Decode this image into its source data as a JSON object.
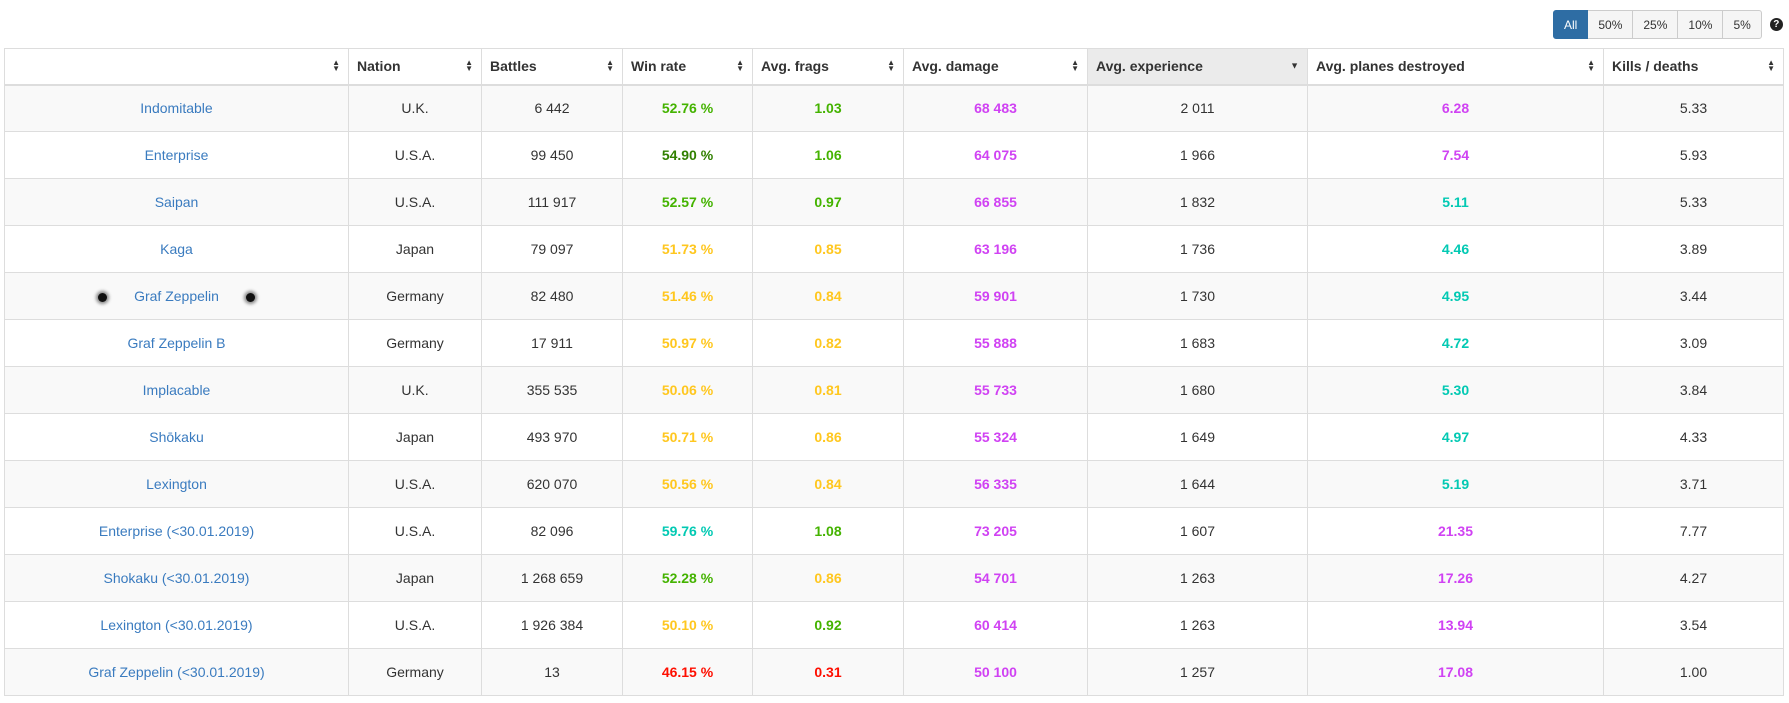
{
  "filters": {
    "buttons": [
      "All",
      "50%",
      "25%",
      "10%",
      "5%"
    ],
    "active": "All",
    "help_symbol": "?"
  },
  "table": {
    "headers": [
      "",
      "Nation",
      "Battles",
      "Win rate",
      "Avg. frags",
      "Avg. damage",
      "Avg. experience",
      "Avg. planes destroyed",
      "Kills / deaths"
    ],
    "sorted_column": "Avg. experience",
    "rows": [
      {
        "ship": "Indomitable",
        "nation": "U.K.",
        "battles": "6 442",
        "winrate": "52.76 %",
        "frags": "1.03",
        "damage": "68 483",
        "exp": "2 011",
        "planes": "6.28",
        "kd": "5.33",
        "winrate_color": "#44b300",
        "frags_color": "#44b300",
        "damage_color": "#d042f3",
        "planes_color": "#d042f3"
      },
      {
        "ship": "Enterprise",
        "nation": "U.S.A.",
        "battles": "99 450",
        "winrate": "54.90 %",
        "frags": "1.06",
        "damage": "64 075",
        "exp": "1 966",
        "planes": "7.54",
        "kd": "5.93",
        "winrate_color": "#318000",
        "frags_color": "#44b300",
        "damage_color": "#d042f3",
        "planes_color": "#d042f3"
      },
      {
        "ship": "Saipan",
        "nation": "U.S.A.",
        "battles": "111 917",
        "winrate": "52.57 %",
        "frags": "0.97",
        "damage": "66 855",
        "exp": "1 832",
        "planes": "5.11",
        "kd": "5.33",
        "winrate_color": "#44b300",
        "frags_color": "#44b300",
        "damage_color": "#d042f3",
        "planes_color": "#02c9b3"
      },
      {
        "ship": "Kaga",
        "nation": "Japan",
        "battles": "79 097",
        "winrate": "51.73 %",
        "frags": "0.85",
        "damage": "63 196",
        "exp": "1 736",
        "planes": "4.46",
        "kd": "3.89",
        "winrate_color": "#ffc71f",
        "frags_color": "#ffc71f",
        "damage_color": "#d042f3",
        "planes_color": "#02c9b3"
      },
      {
        "ship": "Graf Zeppelin",
        "nation": "Germany",
        "battles": "82 480",
        "winrate": "51.46 %",
        "frags": "0.84",
        "damage": "59 901",
        "exp": "1 730",
        "planes": "4.95",
        "kd": "3.44",
        "winrate_color": "#ffc71f",
        "frags_color": "#ffc71f",
        "damage_color": "#d042f3",
        "planes_color": "#02c9b3",
        "dots": true
      },
      {
        "ship": "Graf Zeppelin B",
        "nation": "Germany",
        "battles": "17 911",
        "winrate": "50.97 %",
        "frags": "0.82",
        "damage": "55 888",
        "exp": "1 683",
        "planes": "4.72",
        "kd": "3.09",
        "winrate_color": "#ffc71f",
        "frags_color": "#ffc71f",
        "damage_color": "#d042f3",
        "planes_color": "#02c9b3"
      },
      {
        "ship": "Implacable",
        "nation": "U.K.",
        "battles": "355 535",
        "winrate": "50.06 %",
        "frags": "0.81",
        "damage": "55 733",
        "exp": "1 680",
        "planes": "5.30",
        "kd": "3.84",
        "winrate_color": "#ffc71f",
        "frags_color": "#ffc71f",
        "damage_color": "#d042f3",
        "planes_color": "#02c9b3"
      },
      {
        "ship": "Shōkaku",
        "nation": "Japan",
        "battles": "493 970",
        "winrate": "50.71 %",
        "frags": "0.86",
        "damage": "55 324",
        "exp": "1 649",
        "planes": "4.97",
        "kd": "4.33",
        "winrate_color": "#ffc71f",
        "frags_color": "#ffc71f",
        "damage_color": "#d042f3",
        "planes_color": "#02c9b3"
      },
      {
        "ship": "Lexington",
        "nation": "U.S.A.",
        "battles": "620 070",
        "winrate": "50.56 %",
        "frags": "0.84",
        "damage": "56 335",
        "exp": "1 644",
        "planes": "5.19",
        "kd": "3.71",
        "winrate_color": "#ffc71f",
        "frags_color": "#ffc71f",
        "damage_color": "#d042f3",
        "planes_color": "#02c9b3"
      },
      {
        "ship": "Enterprise (<30.01.2019)",
        "nation": "U.S.A.",
        "battles": "82 096",
        "winrate": "59.76 %",
        "frags": "1.08",
        "damage": "73 205",
        "exp": "1 607",
        "planes": "21.35",
        "kd": "7.77",
        "winrate_color": "#02c9b3",
        "frags_color": "#44b300",
        "damage_color": "#d042f3",
        "planes_color": "#d042f3"
      },
      {
        "ship": "Shokaku (<30.01.2019)",
        "nation": "Japan",
        "battles": "1 268 659",
        "winrate": "52.28 %",
        "frags": "0.86",
        "damage": "54 701",
        "exp": "1 263",
        "planes": "17.26",
        "kd": "4.27",
        "winrate_color": "#44b300",
        "frags_color": "#ffc71f",
        "damage_color": "#d042f3",
        "planes_color": "#d042f3"
      },
      {
        "ship": "Lexington (<30.01.2019)",
        "nation": "U.S.A.",
        "battles": "1 926 384",
        "winrate": "50.10 %",
        "frags": "0.92",
        "damage": "60 414",
        "exp": "1 263",
        "planes": "13.94",
        "kd": "3.54",
        "winrate_color": "#ffc71f",
        "frags_color": "#44b300",
        "damage_color": "#d042f3",
        "planes_color": "#d042f3"
      },
      {
        "ship": "Graf Zeppelin (<30.01.2019)",
        "nation": "Germany",
        "battles": "13",
        "winrate": "46.15 %",
        "frags": "0.31",
        "damage": "50 100",
        "exp": "1 257",
        "planes": "17.08",
        "kd": "1.00",
        "winrate_color": "#fe0e00",
        "frags_color": "#fe0e00",
        "damage_color": "#d042f3",
        "planes_color": "#d042f3"
      }
    ]
  }
}
